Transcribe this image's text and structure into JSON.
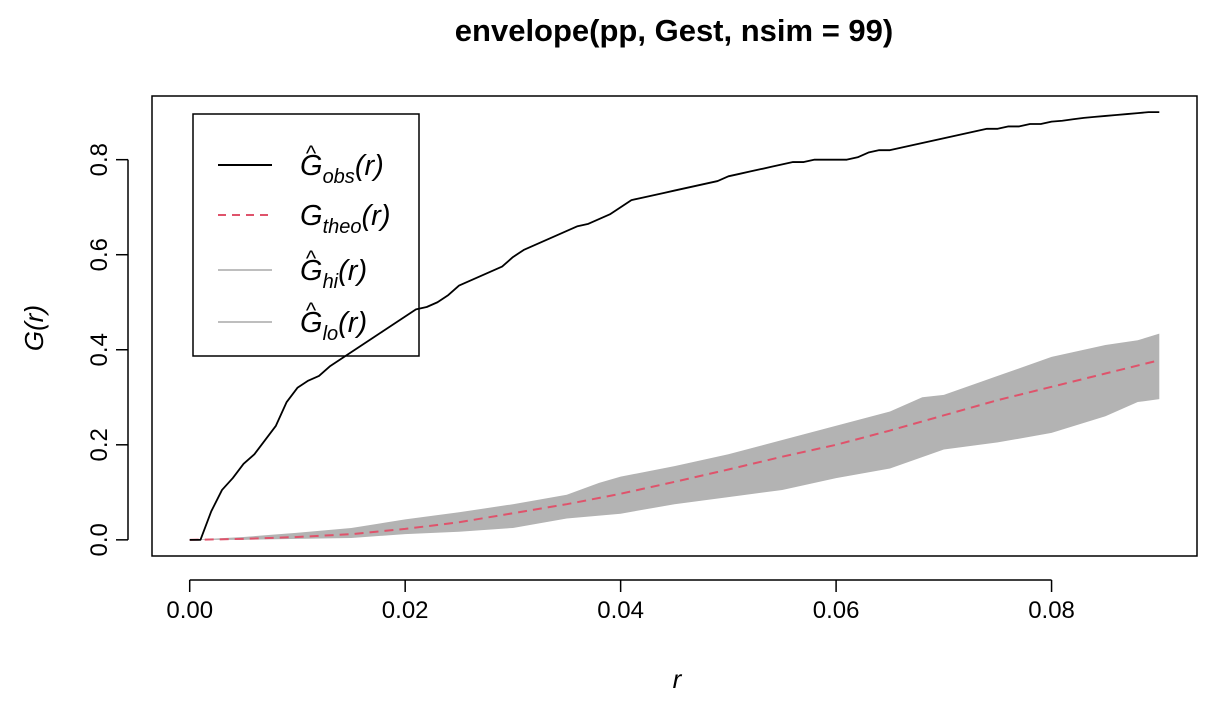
{
  "chart_data": {
    "type": "line",
    "title": "envelope(pp, Gest, nsim = 99)",
    "xlabel": "r",
    "ylabel": "G(r)",
    "xlim": [
      -0.0035,
      0.0935
    ],
    "ylim": [
      -0.034,
      0.934
    ],
    "x_ticks": [
      0.0,
      0.02,
      0.04,
      0.06,
      0.08
    ],
    "x_tick_labels": [
      "0.00",
      "0.02",
      "0.04",
      "0.06",
      "0.08"
    ],
    "y_ticks": [
      0.0,
      0.2,
      0.4,
      0.6,
      0.8
    ],
    "y_tick_labels": [
      "0.0",
      "0.2",
      "0.4",
      "0.6",
      "0.8"
    ],
    "grid": false,
    "legend_position": "top-left",
    "colors": {
      "observed": "#000000",
      "theoretical": "#DF536B",
      "envelope": "#b3b3b3",
      "legend_envelope_line": "#bebebe"
    },
    "legend": [
      {
        "base": "G",
        "hat": true,
        "sub": "obs",
        "arg": "(r)",
        "style": "solid",
        "color": "#000000"
      },
      {
        "base": "G",
        "hat": false,
        "sub": "theo",
        "arg": "(r)",
        "style": "dashed",
        "color": "#DF536B"
      },
      {
        "base": "G",
        "hat": true,
        "sub": "hi",
        "arg": "(r)",
        "style": "solid",
        "color": "#bebebe"
      },
      {
        "base": "G",
        "hat": true,
        "sub": "lo",
        "arg": "(r)",
        "style": "solid",
        "color": "#bebebe"
      }
    ],
    "series": [
      {
        "key": "observed",
        "points": [
          [
            0.0,
            0.0
          ],
          [
            0.001,
            0.0
          ],
          [
            0.002,
            0.06
          ],
          [
            0.003,
            0.105
          ],
          [
            0.004,
            0.13
          ],
          [
            0.005,
            0.16
          ],
          [
            0.006,
            0.18
          ],
          [
            0.007,
            0.21
          ],
          [
            0.008,
            0.24
          ],
          [
            0.009,
            0.29
          ],
          [
            0.01,
            0.32
          ],
          [
            0.011,
            0.335
          ],
          [
            0.012,
            0.345
          ],
          [
            0.013,
            0.365
          ],
          [
            0.014,
            0.38
          ],
          [
            0.015,
            0.395
          ],
          [
            0.016,
            0.41
          ],
          [
            0.017,
            0.425
          ],
          [
            0.018,
            0.44
          ],
          [
            0.019,
            0.455
          ],
          [
            0.02,
            0.47
          ],
          [
            0.021,
            0.485
          ],
          [
            0.022,
            0.49
          ],
          [
            0.023,
            0.5
          ],
          [
            0.024,
            0.515
          ],
          [
            0.025,
            0.535
          ],
          [
            0.026,
            0.545
          ],
          [
            0.027,
            0.555
          ],
          [
            0.028,
            0.565
          ],
          [
            0.029,
            0.575
          ],
          [
            0.03,
            0.595
          ],
          [
            0.031,
            0.61
          ],
          [
            0.032,
            0.62
          ],
          [
            0.033,
            0.63
          ],
          [
            0.034,
            0.64
          ],
          [
            0.035,
            0.65
          ],
          [
            0.036,
            0.66
          ],
          [
            0.037,
            0.665
          ],
          [
            0.038,
            0.675
          ],
          [
            0.039,
            0.685
          ],
          [
            0.04,
            0.7
          ],
          [
            0.041,
            0.715
          ],
          [
            0.042,
            0.72
          ],
          [
            0.043,
            0.725
          ],
          [
            0.044,
            0.73
          ],
          [
            0.045,
            0.735
          ],
          [
            0.046,
            0.74
          ],
          [
            0.047,
            0.745
          ],
          [
            0.048,
            0.75
          ],
          [
            0.049,
            0.755
          ],
          [
            0.05,
            0.765
          ],
          [
            0.051,
            0.77
          ],
          [
            0.052,
            0.775
          ],
          [
            0.053,
            0.78
          ],
          [
            0.054,
            0.785
          ],
          [
            0.055,
            0.79
          ],
          [
            0.056,
            0.795
          ],
          [
            0.057,
            0.795
          ],
          [
            0.058,
            0.8
          ],
          [
            0.059,
            0.8
          ],
          [
            0.06,
            0.8
          ],
          [
            0.061,
            0.8
          ],
          [
            0.062,
            0.805
          ],
          [
            0.063,
            0.815
          ],
          [
            0.064,
            0.82
          ],
          [
            0.065,
            0.82
          ],
          [
            0.066,
            0.825
          ],
          [
            0.067,
            0.83
          ],
          [
            0.068,
            0.835
          ],
          [
            0.069,
            0.84
          ],
          [
            0.07,
            0.845
          ],
          [
            0.071,
            0.85
          ],
          [
            0.072,
            0.855
          ],
          [
            0.073,
            0.86
          ],
          [
            0.074,
            0.865
          ],
          [
            0.075,
            0.865
          ],
          [
            0.076,
            0.87
          ],
          [
            0.077,
            0.87
          ],
          [
            0.078,
            0.875
          ],
          [
            0.079,
            0.875
          ],
          [
            0.08,
            0.88
          ],
          [
            0.081,
            0.882
          ],
          [
            0.082,
            0.885
          ],
          [
            0.083,
            0.888
          ],
          [
            0.084,
            0.89
          ],
          [
            0.085,
            0.892
          ],
          [
            0.086,
            0.894
          ],
          [
            0.087,
            0.896
          ],
          [
            0.088,
            0.898
          ],
          [
            0.089,
            0.9
          ],
          [
            0.09,
            0.9
          ]
        ]
      },
      {
        "key": "theoretical",
        "points": [
          [
            0.0,
            0.0
          ],
          [
            0.005,
            0.002
          ],
          [
            0.01,
            0.006
          ],
          [
            0.015,
            0.012
          ],
          [
            0.02,
            0.023
          ],
          [
            0.025,
            0.037
          ],
          [
            0.03,
            0.056
          ],
          [
            0.035,
            0.075
          ],
          [
            0.04,
            0.097
          ],
          [
            0.045,
            0.122
          ],
          [
            0.05,
            0.148
          ],
          [
            0.055,
            0.175
          ],
          [
            0.06,
            0.2
          ],
          [
            0.065,
            0.23
          ],
          [
            0.07,
            0.262
          ],
          [
            0.075,
            0.294
          ],
          [
            0.08,
            0.322
          ],
          [
            0.085,
            0.35
          ],
          [
            0.09,
            0.378
          ]
        ]
      },
      {
        "key": "envelope_hi",
        "points": [
          [
            0.0,
            0.0
          ],
          [
            0.005,
            0.006
          ],
          [
            0.01,
            0.015
          ],
          [
            0.015,
            0.025
          ],
          [
            0.02,
            0.043
          ],
          [
            0.025,
            0.058
          ],
          [
            0.03,
            0.075
          ],
          [
            0.035,
            0.095
          ],
          [
            0.038,
            0.12
          ],
          [
            0.04,
            0.133
          ],
          [
            0.045,
            0.155
          ],
          [
            0.05,
            0.18
          ],
          [
            0.055,
            0.21
          ],
          [
            0.06,
            0.24
          ],
          [
            0.065,
            0.27
          ],
          [
            0.068,
            0.3
          ],
          [
            0.07,
            0.305
          ],
          [
            0.075,
            0.345
          ],
          [
            0.08,
            0.385
          ],
          [
            0.085,
            0.41
          ],
          [
            0.088,
            0.42
          ],
          [
            0.09,
            0.434
          ]
        ]
      },
      {
        "key": "envelope_lo",
        "points": [
          [
            0.0,
            0.0
          ],
          [
            0.005,
            0.0
          ],
          [
            0.01,
            0.002
          ],
          [
            0.015,
            0.004
          ],
          [
            0.02,
            0.012
          ],
          [
            0.025,
            0.017
          ],
          [
            0.03,
            0.025
          ],
          [
            0.035,
            0.045
          ],
          [
            0.04,
            0.055
          ],
          [
            0.045,
            0.075
          ],
          [
            0.05,
            0.09
          ],
          [
            0.055,
            0.105
          ],
          [
            0.06,
            0.13
          ],
          [
            0.065,
            0.15
          ],
          [
            0.07,
            0.19
          ],
          [
            0.075,
            0.205
          ],
          [
            0.08,
            0.225
          ],
          [
            0.085,
            0.26
          ],
          [
            0.088,
            0.29
          ],
          [
            0.09,
            0.296
          ]
        ]
      }
    ]
  }
}
